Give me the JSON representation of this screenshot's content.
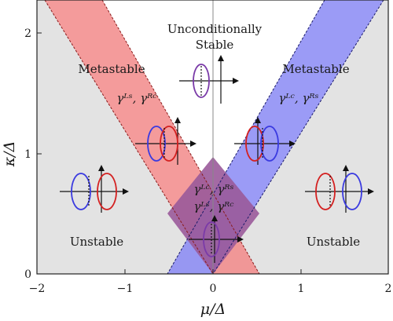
{
  "axes": {
    "x_label": "μ/Δ",
    "y_label": "κ/Δ",
    "x_ticks": [
      {
        "value": -2,
        "label": "−2"
      },
      {
        "value": -1,
        "label": "−1"
      },
      {
        "value": 0,
        "label": "0"
      },
      {
        "value": 1,
        "label": "1"
      },
      {
        "value": 2,
        "label": "2"
      }
    ],
    "y_ticks": [
      {
        "value": 0,
        "label": "0"
      },
      {
        "value": 1,
        "label": "1"
      },
      {
        "value": 2,
        "label": "2"
      }
    ],
    "x_range": [
      -2,
      2
    ],
    "y_range": [
      0,
      2.3
    ]
  },
  "regions": {
    "stable_line1": "Unconditionally",
    "stable_line2": "Stable",
    "metastable_left": "Metastable",
    "metastable_right": "Metastable",
    "unstable_left": "Unstable",
    "unstable_right": "Unstable"
  },
  "labels": {
    "left_gamma": "γᴸˢ, γᴿᶜ",
    "right_gamma": "γᴸᶜ, γᴿˢ",
    "center_gamma_1": "γᴸᶜ, γᴿˢ",
    "center_gamma_2": "γᴸˢ, γᴿᶜ"
  },
  "colors": {
    "unstable_fill": "#e3e3e3",
    "red_band": "#f28a8a",
    "blue_band": "#8a8af5",
    "overlap": "#9a5a9a",
    "red": "#d42020",
    "blue": "#3a3ae0",
    "purple": "#7a3aa8"
  }
}
